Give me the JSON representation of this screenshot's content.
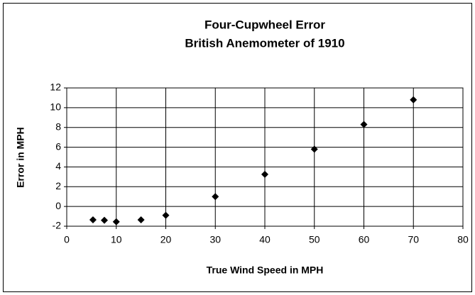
{
  "chart_data": {
    "type": "scatter",
    "title": "Four-Cupwheel Error",
    "subtitle": "British Anemometer of 1910",
    "x_label": "True Wind Speed in MPH",
    "y_label": "Error in MPH",
    "series": [
      {
        "name": "Error",
        "color": "#000000",
        "x": [
          5.3,
          7.6,
          10,
          15,
          20,
          30,
          40,
          50,
          60,
          70
        ],
        "values": [
          -1.35,
          -1.4,
          -1.55,
          -1.35,
          -0.9,
          1.0,
          3.25,
          5.8,
          8.3,
          10.8
        ]
      }
    ],
    "xlim": [
      0,
      80
    ],
    "xticks": [
      0,
      10,
      20,
      30,
      40,
      50,
      60,
      70,
      80
    ],
    "ylim": [
      -2,
      12
    ],
    "yticks": [
      -2,
      0,
      2,
      4,
      6,
      8,
      10,
      12
    ],
    "grid": true
  }
}
